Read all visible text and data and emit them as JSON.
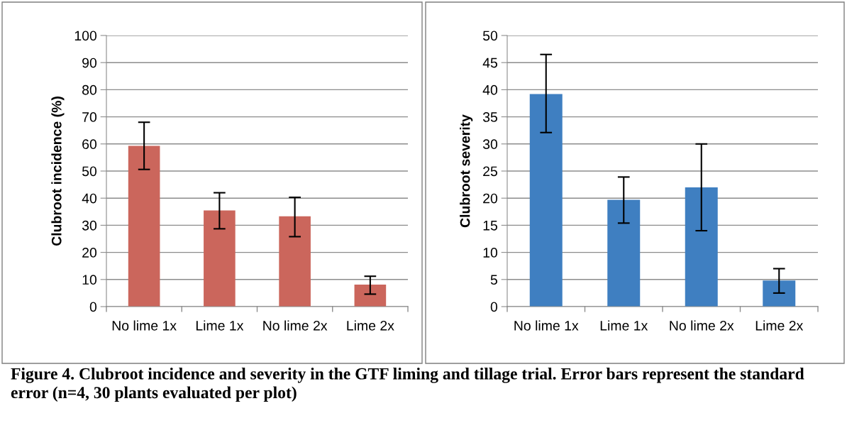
{
  "chart_data": [
    {
      "type": "bar",
      "categories": [
        "No lime 1x",
        "Lime 1x",
        "No lime 2x",
        "Lime 2x"
      ],
      "ylabel": "Clubroot incidence (%)",
      "series": [
        {
          "color": "#cb665c",
          "values": [
            59.3,
            35.5,
            33.3,
            8.1
          ],
          "errors": [
            [
              50.6,
              68
            ],
            [
              28.7,
              42
            ],
            [
              25.8,
              40.3
            ],
            [
              4.6,
              11.2
            ]
          ]
        }
      ],
      "ylim": [
        0,
        100
      ],
      "yticks": [
        0,
        10,
        20,
        30,
        40,
        50,
        60,
        70,
        80,
        90,
        100
      ],
      "grid": "y",
      "annotations": [
        "Figure 4. Clubroot incidence and severity in the GTF liming and tillage trial. Error bars represent the standard error (n=4, 30 plants evaluated per plot)"
      ]
    },
    {
      "type": "bar",
      "categories": [
        "No lime 1x",
        "Lime 1x",
        "No lime 2x",
        "Lime 2x"
      ],
      "ylabel": "Clubroot severity",
      "series": [
        {
          "color": "#3f7fc1",
          "values": [
            39.2,
            19.7,
            22,
            4.8
          ],
          "errors": [
            [
              32.1,
              46.5
            ],
            [
              15.4,
              23.9
            ],
            [
              14,
              30
            ],
            [
              2.5,
              7
            ]
          ]
        }
      ],
      "ylim": [
        0,
        50
      ],
      "yticks": [
        0,
        5,
        10,
        15,
        20,
        25,
        30,
        35,
        40,
        45,
        50
      ],
      "grid": "y"
    }
  ]
}
